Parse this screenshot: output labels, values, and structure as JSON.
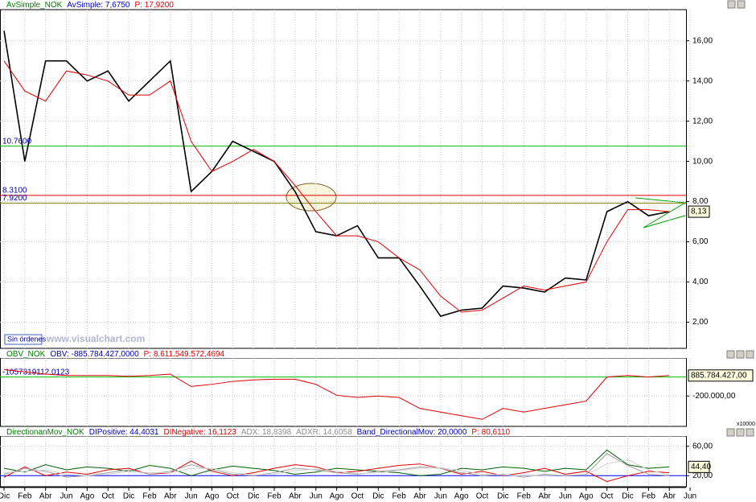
{
  "chart_data": [
    {
      "type": "line",
      "header": [
        {
          "text": "AvSimple_NOK",
          "color": "#008000"
        },
        {
          "text": "AvSimple: 7,6750",
          "color": "#0000c0"
        },
        {
          "text": "P: 17,9200",
          "color": "#e00000"
        }
      ],
      "categories": [
        "Dic",
        "Feb",
        "Abr",
        "Jun",
        "Ago",
        "Oct",
        "Dic",
        "Feb",
        "Abr",
        "Jun",
        "Ago",
        "Oct",
        "Dic",
        "Feb",
        "Abr",
        "Jun",
        "Ago",
        "Oct",
        "Dic",
        "Feb",
        "Abr",
        "Jun",
        "Ago",
        "Oct",
        "Dic",
        "Feb",
        "Abr",
        "Jun",
        "Ago",
        "Oct",
        "Dic",
        "Feb",
        "Abr",
        "Jun"
      ],
      "series": [
        {
          "color": "#000000",
          "values": [
            16.5,
            10,
            15,
            15,
            14,
            14.5,
            13,
            14,
            15,
            8.5,
            9.5,
            11,
            10.5,
            10,
            8.5,
            6.5,
            6.3,
            6.8,
            5.2,
            5.2,
            3.8,
            2.3,
            2.6,
            2.7,
            3.8,
            3.7,
            3.5,
            4.2,
            4.1,
            7.5,
            8.0,
            7.3,
            7.5,
            null
          ]
        },
        {
          "color": "#e00000",
          "values": [
            15,
            13.5,
            13,
            14.5,
            14.3,
            14,
            13.3,
            13.3,
            14,
            11,
            9.5,
            10,
            10.6,
            10,
            8.8,
            7.5,
            6.3,
            6.3,
            6,
            5.2,
            4.6,
            3.3,
            2.5,
            2.6,
            3.2,
            3.8,
            3.6,
            3.8,
            4,
            6,
            7.6,
            7.6,
            7.5,
            null
          ]
        }
      ],
      "ylim": [
        0.7,
        17.55
      ],
      "yticks": [
        {
          "value": 2,
          "label": "2,00"
        },
        {
          "value": 4,
          "label": "4,00"
        },
        {
          "value": 6,
          "label": "6,00"
        },
        {
          "value": 8,
          "label": "8,00"
        },
        {
          "value": 10,
          "label": "10,00"
        },
        {
          "value": 12,
          "label": "12,00"
        },
        {
          "value": 14,
          "label": "14,00"
        },
        {
          "value": 16,
          "label": "16,00"
        }
      ],
      "levels": [
        {
          "value": 10.76,
          "label": "10.7600",
          "color": "#00c000"
        },
        {
          "value": 8.31,
          "label": "8.3100",
          "color": "#e00000"
        },
        {
          "value": 7.92,
          "label": "7.9200",
          "color": "#808000"
        }
      ],
      "last_label": "8,13",
      "annotations": [
        "Sin órdenes",
        "www.visualchart.com"
      ],
      "grid": true
    },
    {
      "type": "line",
      "header": [
        {
          "text": "OBV_NOK",
          "color": "#008000"
        },
        {
          "text": "OBV: -885.784.427,0000",
          "color": "#0000c0"
        },
        {
          "text": "P: 8.611.549.572,4694",
          "color": "#e00000"
        }
      ],
      "series": [
        {
          "color": "#e00000",
          "values": [
            76900,
            53800,
            30800,
            15400,
            15400,
            15400,
            7700,
            15400,
            30800,
            -100000,
            -76900,
            -46200,
            -30800,
            -23100,
            -23100,
            -76900,
            -192300,
            -215400,
            -200000,
            -215400,
            -330800,
            -369200,
            -407700,
            -446200,
            -330800,
            -369200,
            -330800,
            -292300,
            -253800,
            0,
            15400,
            0,
            15400,
            null
          ]
        }
      ],
      "ylim": [
        -520000,
        200000
      ],
      "yticks": [
        {
          "value": -200000,
          "label": "-200.000,00"
        }
      ],
      "levels": [
        {
          "value": 0,
          "label": "-1057319112.0123",
          "color": "#00c000"
        }
      ],
      "last_label": "885.784.427,00",
      "scale_note": "x10000",
      "grid": true
    },
    {
      "type": "line",
      "header": [
        {
          "text": "DirectionanMov_NOK",
          "color": "#008000"
        },
        {
          "text": "DIPositive: 44,4031",
          "color": "#0000c0"
        },
        {
          "text": "DINegative: 16,1123",
          "color": "#e00000"
        },
        {
          "text": "ADX: 18,8398",
          "color": "#909090"
        },
        {
          "text": "ADXR: 14,6058",
          "color": "#909090"
        },
        {
          "text": "Band_DirectionalMov: 20,0000",
          "color": "#0000c0"
        },
        {
          "text": "P: 80,6110",
          "color": "#e00000"
        }
      ],
      "series": [
        {
          "color": "#006000",
          "values": [
            30,
            25,
            35,
            28,
            32,
            30,
            26,
            34,
            30,
            20,
            28,
            33,
            30,
            27,
            22,
            25,
            30,
            28,
            26,
            24,
            20,
            22,
            30,
            28,
            32,
            30,
            26,
            30,
            28,
            55,
            35,
            30,
            32,
            null
          ]
        },
        {
          "color": "#e00000",
          "values": [
            18,
            32,
            20,
            25,
            22,
            28,
            30,
            22,
            24,
            40,
            26,
            20,
            24,
            30,
            35,
            32,
            24,
            26,
            30,
            34,
            36,
            30,
            22,
            26,
            20,
            24,
            30,
            22,
            26,
            12,
            20,
            26,
            24,
            null
          ]
        },
        {
          "color": "#a0a0a0",
          "values": [
            22,
            30,
            26,
            18,
            20,
            24,
            28,
            22,
            26,
            35,
            28,
            22,
            20,
            24,
            30,
            28,
            24,
            22,
            26,
            28,
            32,
            30,
            24,
            20,
            22,
            18,
            22,
            20,
            22,
            50,
            34,
            22,
            20,
            null
          ]
        },
        {
          "color": "#d0d0d0",
          "values": [
            24,
            26,
            28,
            22,
            20,
            22,
            26,
            24,
            24,
            30,
            30,
            24,
            21,
            22,
            27,
            29,
            26,
            23,
            24,
            27,
            30,
            31,
            27,
            22,
            21,
            20,
            20,
            21,
            21,
            36,
            42,
            28,
            21,
            null
          ]
        }
      ],
      "ylim": [
        5,
        74
      ],
      "yticks": [
        {
          "value": 20,
          "label": "20,00"
        },
        {
          "value": 60,
          "label": "60,00"
        }
      ],
      "levels": [
        {
          "value": 20,
          "color": "#0000ff"
        }
      ],
      "last_label": "44,40",
      "grid": true
    }
  ]
}
